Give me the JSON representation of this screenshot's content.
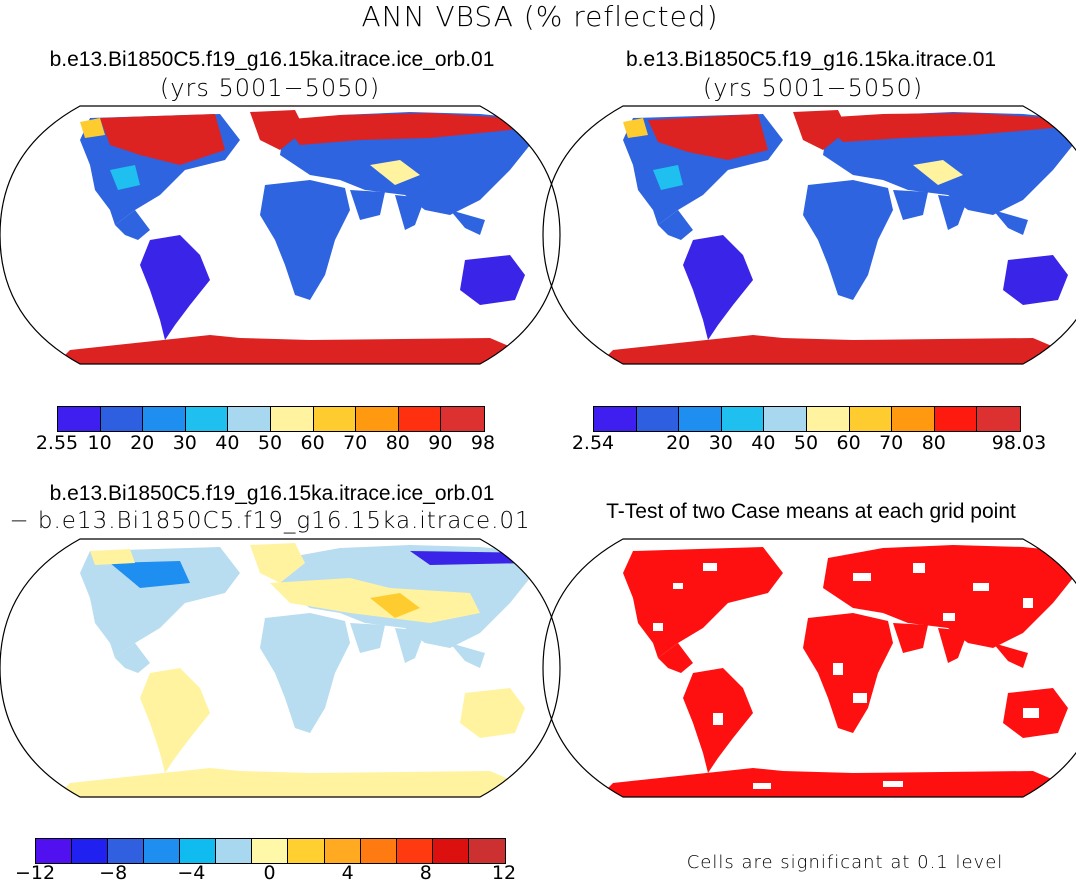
{
  "main_title": "ANN VBSA (% reflected)",
  "panels": {
    "top_left": {
      "title": "b.e13.Bi1850C5.f19_g16.15ka.itrace.ice_orb.01",
      "subtitle": "(yrs 5001−5050)"
    },
    "top_right": {
      "title": "b.e13.Bi1850C5.f19_g16.15ka.itrace.01",
      "subtitle": "(yrs 5001−5050)"
    },
    "bottom_left": {
      "title": "b.e13.Bi1850C5.f19_g16.15ka.itrace.ice_orb.01",
      "subtitle": "− b.e13.Bi1850C5.f19_g16.15ka.itrace.01"
    },
    "bottom_right": {
      "title": "T-Test of two Case means at each grid point",
      "note": "Cells are significant at 0.1 level"
    }
  },
  "colorbars": {
    "cb1": {
      "colors": [
        "#3f1ff0",
        "#2e5fe0",
        "#1e8ef0",
        "#1fbff0",
        "#a8d8f0",
        "#fff3a0",
        "#ffcc30",
        "#ff9a10",
        "#ff3010",
        "#dd3030"
      ],
      "labels": [
        "2.55",
        "10",
        "20",
        "30",
        "40",
        "50",
        "60",
        "70",
        "80",
        "90",
        "98"
      ]
    },
    "cb2": {
      "colors": [
        "#3f1ff0",
        "#2e5fe0",
        "#1e8ef0",
        "#1fbff0",
        "#a8d8f0",
        "#fff3a0",
        "#ffcc30",
        "#ff9a10",
        "#ff1a10",
        "#dd3030"
      ],
      "labels": [
        "2.54",
        "",
        "20",
        "30",
        "40",
        "50",
        "60",
        "70",
        "80",
        "",
        "98.03"
      ]
    },
    "cb3": {
      "colors": [
        "#5010f0",
        "#2020f0",
        "#3060e0",
        "#1e8ef0",
        "#10bbf0",
        "#a8d8f0",
        "#fff8a8",
        "#ffd030",
        "#ffaa20",
        "#ff7a10",
        "#ff3a10",
        "#dd1010",
        "#cc3030"
      ],
      "labels": [
        "−12",
        "−8",
        "−4",
        "0",
        "4",
        "8",
        "12"
      ]
    }
  },
  "colors": {
    "red": "#dd2222",
    "blue": "#3a24e8",
    "lightblue": "#b8dcf0",
    "yellow": "#fff3a0",
    "midblue": "#2e64e0"
  }
}
